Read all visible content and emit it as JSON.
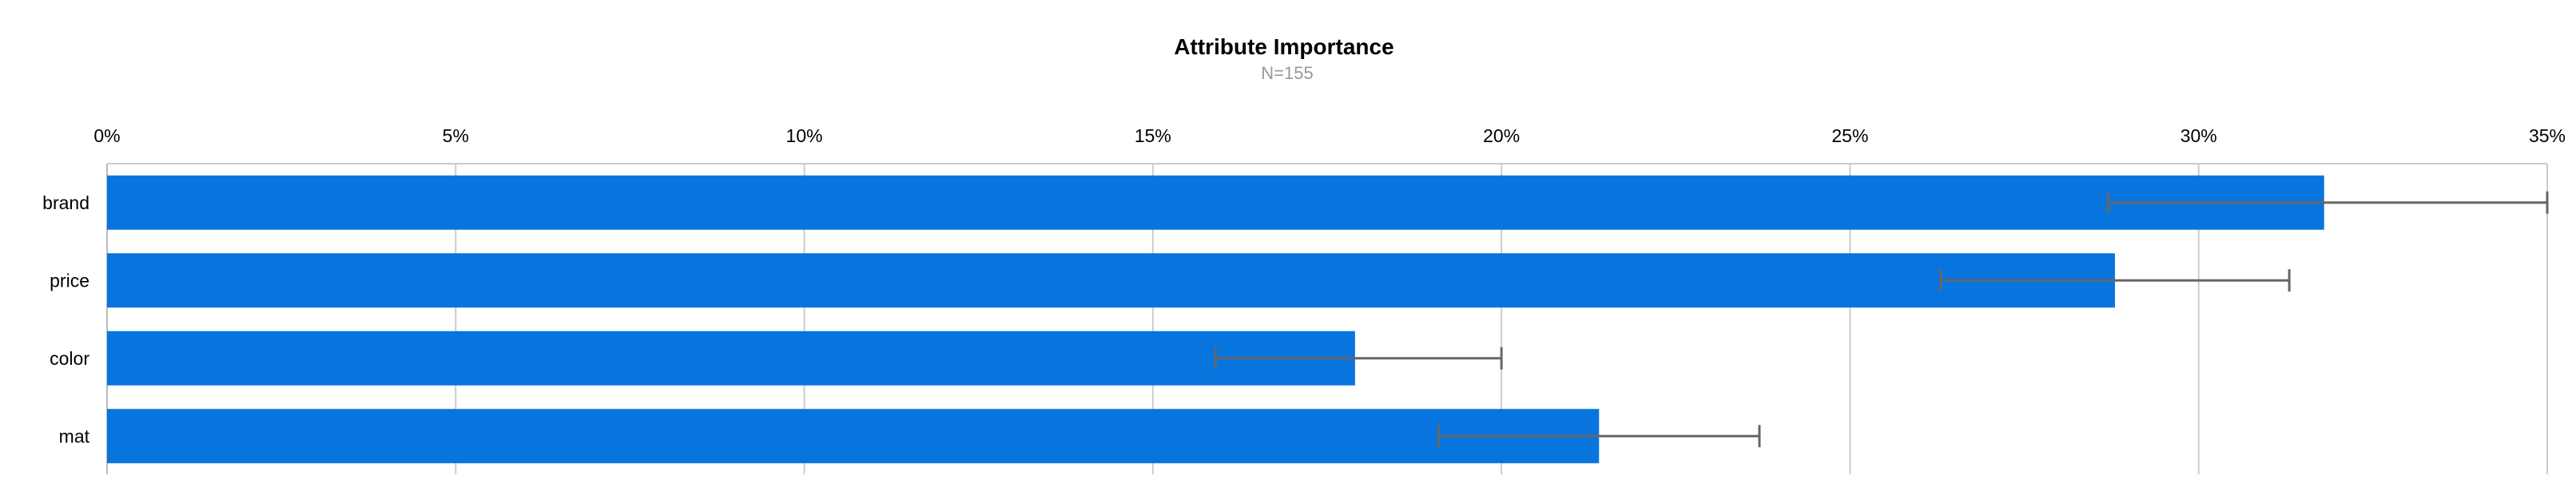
{
  "chart_data": {
    "type": "bar",
    "orientation": "horizontal",
    "title": "Attribute Importance",
    "subtitle": "N=155",
    "categories": [
      "brand",
      "price",
      "color",
      "mat"
    ],
    "values": [
      31.8,
      28.8,
      17.9,
      21.4
    ],
    "error_low": [
      28.7,
      26.3,
      15.9,
      19.1
    ],
    "error_high": [
      35.0,
      31.3,
      20.0,
      23.7
    ],
    "xlim": [
      0,
      35
    ],
    "xticks": [
      0,
      5,
      10,
      15,
      20,
      25,
      30,
      35
    ],
    "xtick_labels": [
      "0%",
      "5%",
      "10%",
      "15%",
      "20%",
      "25%",
      "30%",
      "35%"
    ],
    "axis_position": "top",
    "grid": true,
    "bar_color": "#0875DF",
    "error_color": "#666666",
    "grid_color": "#CCCCCC"
  }
}
